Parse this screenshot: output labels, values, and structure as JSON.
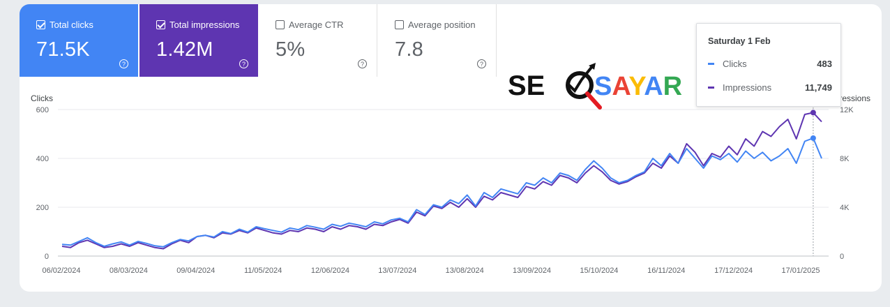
{
  "metrics": {
    "clicks": {
      "label": "Total clicks",
      "value": "71.5K",
      "checked": true
    },
    "impressions": {
      "label": "Total impressions",
      "value": "1.42M",
      "checked": true
    },
    "ctr": {
      "label": "Average CTR",
      "value": "5%",
      "checked": false
    },
    "position": {
      "label": "Average position",
      "value": "7.8",
      "checked": false
    },
    "help_glyph": "?"
  },
  "tooltip": {
    "date": "Saturday 1 Feb",
    "clicks_label": "Clicks",
    "clicks_value": "483",
    "impressions_label": "Impressions",
    "impressions_value": "11,749"
  },
  "logo": {
    "text_left": "SE",
    "text_right": "SAYAR"
  },
  "colors": {
    "clicks": "#4285f4",
    "impressions": "#5e35b1",
    "grid": "#e8eaed"
  },
  "chart_data": {
    "type": "line",
    "xlabel": "",
    "y_left_label": "Clicks",
    "y_right_label": "Impressions",
    "y_left_ticks": [
      "0",
      "200",
      "400",
      "600"
    ],
    "y_right_ticks": [
      "0",
      "4K",
      "8K",
      "12K"
    ],
    "ylim_left": [
      0,
      600
    ],
    "ylim_right": [
      0,
      12000
    ],
    "x_ticks": [
      "06/02/2024",
      "08/03/2024",
      "09/04/2024",
      "11/05/2024",
      "12/06/2024",
      "13/07/2024",
      "13/08/2024",
      "13/09/2024",
      "15/10/2024",
      "16/11/2024",
      "17/12/2024",
      "17/01/2025"
    ],
    "grid": true,
    "series": [
      {
        "name": "Clicks",
        "values": [
          48,
          45,
          60,
          75,
          55,
          40,
          50,
          58,
          45,
          60,
          52,
          42,
          38,
          55,
          68,
          62,
          80,
          85,
          78,
          100,
          92,
          110,
          98,
          120,
          112,
          105,
          98,
          115,
          108,
          125,
          118,
          110,
          130,
          122,
          135,
          128,
          120,
          140,
          132,
          148,
          155,
          140,
          190,
          170,
          210,
          200,
          230,
          215,
          250,
          205,
          260,
          240,
          275,
          265,
          255,
          300,
          290,
          320,
          300,
          340,
          330,
          310,
          355,
          390,
          360,
          320,
          300,
          310,
          330,
          345,
          400,
          370,
          420,
          380,
          440,
          400,
          360,
          410,
          395,
          420,
          385,
          430,
          400,
          425,
          390,
          410,
          440,
          380,
          470,
          483,
          400
        ]
      },
      {
        "name": "Impressions",
        "values": [
          800,
          700,
          1100,
          1300,
          1000,
          700,
          800,
          1000,
          800,
          1100,
          900,
          700,
          600,
          1000,
          1300,
          1100,
          1600,
          1700,
          1500,
          1900,
          1800,
          2100,
          1900,
          2300,
          2100,
          1900,
          1800,
          2100,
          2000,
          2300,
          2200,
          2000,
          2400,
          2200,
          2500,
          2400,
          2200,
          2600,
          2500,
          2800,
          3000,
          2700,
          3600,
          3300,
          4100,
          3900,
          4400,
          4000,
          4700,
          4000,
          4900,
          4600,
          5200,
          5000,
          4800,
          5700,
          5500,
          6100,
          5800,
          6600,
          6400,
          6000,
          6800,
          7400,
          6900,
          6200,
          5900,
          6100,
          6500,
          6800,
          7600,
          7200,
          8200,
          7600,
          9200,
          8500,
          7400,
          8400,
          8100,
          9000,
          8300,
          9600,
          9000,
          10200,
          9800,
          10600,
          11200,
          9600,
          11600,
          11749,
          11000
        ]
      }
    ]
  }
}
